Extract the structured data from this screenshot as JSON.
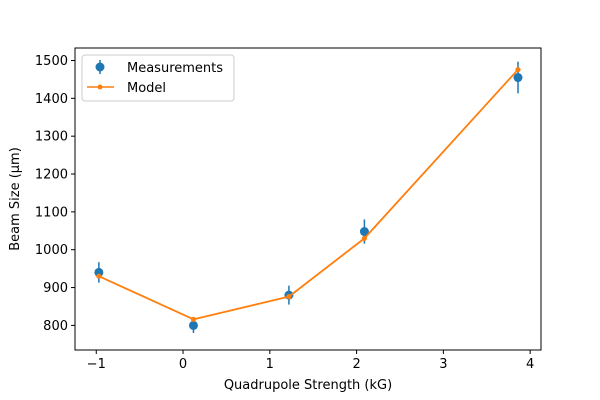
{
  "chart_data": {
    "type": "scatter",
    "xlabel": "Quadrupole Strength (kG)",
    "ylabel": "Beam Size (μm)",
    "xlim": [
      -1.245,
      4.125
    ],
    "ylim": [
      735,
      1533
    ],
    "xticks": [
      -1,
      0,
      1,
      2,
      3,
      4
    ],
    "xtick_labels": [
      "−1",
      "0",
      "1",
      "2",
      "3",
      "4"
    ],
    "yticks": [
      800,
      900,
      1000,
      1100,
      1200,
      1300,
      1400,
      1500
    ],
    "ytick_labels": [
      "800",
      "900",
      "1000",
      "1100",
      "1200",
      "1300",
      "1400",
      "1500"
    ],
    "grid": false,
    "legend_position": "top-left",
    "series": [
      {
        "name": "Measurements",
        "kind": "errorbar",
        "color": "#1f77b4",
        "x": [
          -0.97,
          0.12,
          1.22,
          2.09,
          3.86
        ],
        "y": [
          940,
          800,
          880,
          1048,
          1455
        ],
        "yerr": [
          27,
          20,
          25,
          32,
          42
        ]
      },
      {
        "name": "Model",
        "kind": "line",
        "color": "#ff7f0e",
        "x": [
          -0.97,
          0.12,
          1.22,
          2.09,
          3.86
        ],
        "y": [
          930,
          816,
          876,
          1030,
          1476
        ]
      }
    ]
  }
}
